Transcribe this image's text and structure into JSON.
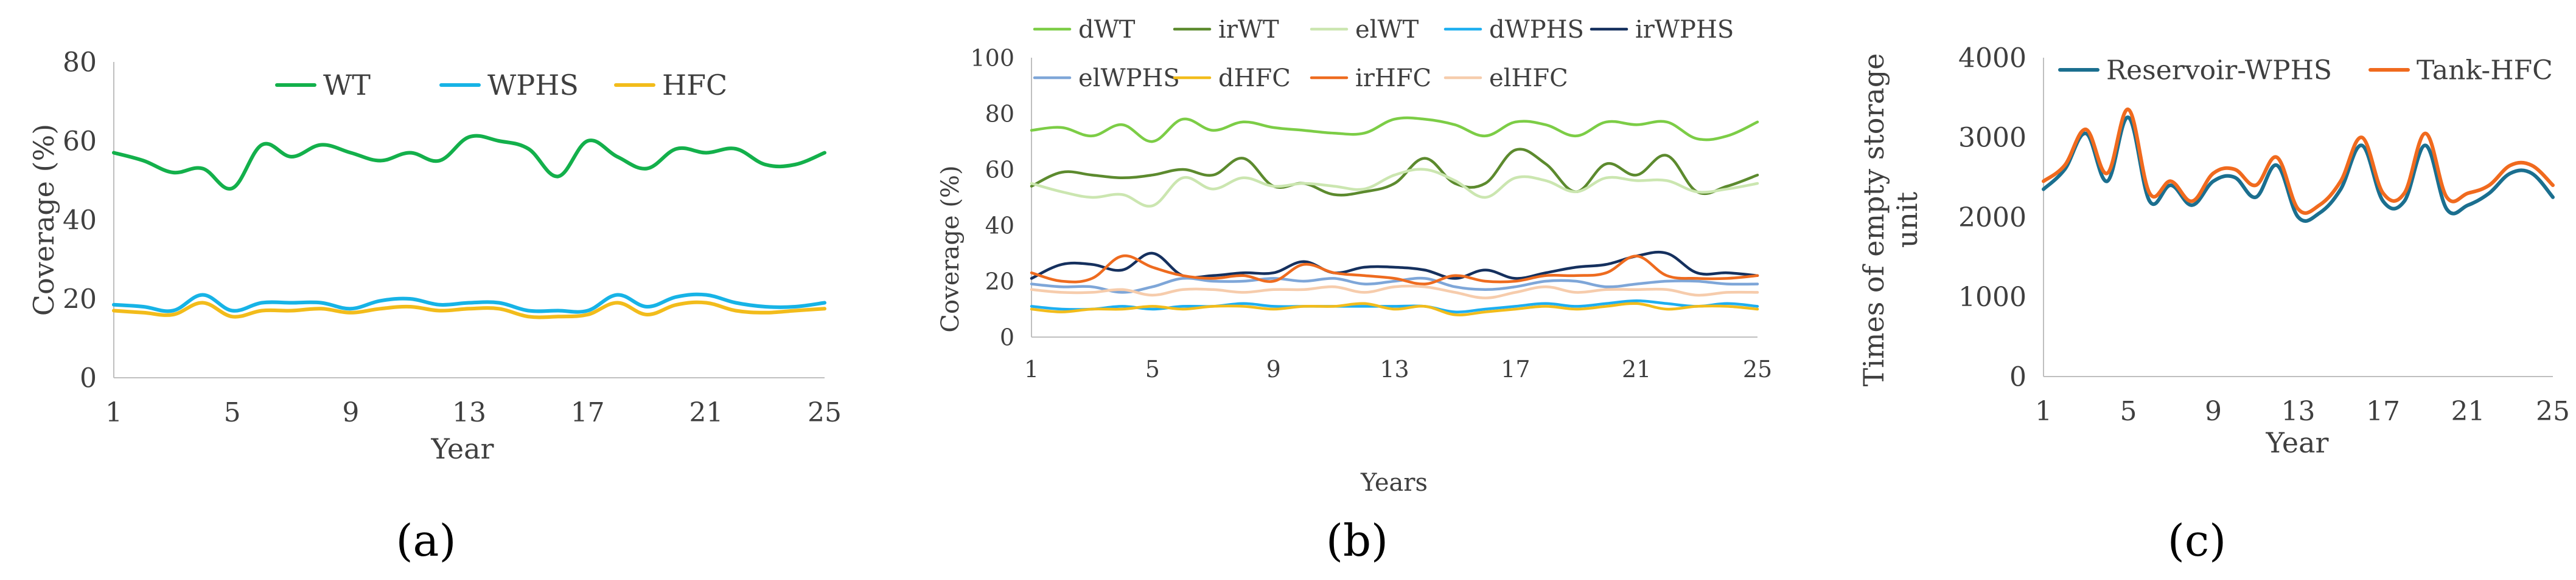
{
  "chart_data": [
    {
      "type": "line",
      "panel_label": "(a)",
      "xlabel": "Year",
      "ylabel": "Coverage (%)",
      "ylim": [
        0,
        80
      ],
      "yticks": [
        0,
        20,
        40,
        60,
        80
      ],
      "xticks": [
        1,
        5,
        9,
        13,
        17,
        21,
        25
      ],
      "x": [
        1,
        2,
        3,
        4,
        5,
        6,
        7,
        8,
        9,
        10,
        11,
        12,
        13,
        14,
        15,
        16,
        17,
        18,
        19,
        20,
        21,
        22,
        23,
        24,
        25
      ],
      "legend_position": "top",
      "series": [
        {
          "name": "WT",
          "color": "#13b04b",
          "values": [
            57,
            55,
            52,
            53,
            48,
            59,
            56,
            59,
            57,
            55,
            57,
            55,
            61,
            60,
            58,
            51,
            60,
            56,
            53,
            58,
            57,
            58,
            54,
            54,
            57
          ]
        },
        {
          "name": "WPHS",
          "color": "#17b3e6",
          "values": [
            18.5,
            18,
            17,
            21,
            17,
            19,
            19,
            19,
            17.5,
            19.5,
            20,
            18.5,
            19,
            19,
            17,
            17,
            17,
            21,
            18,
            20.5,
            21,
            19,
            18,
            18,
            19
          ]
        },
        {
          "name": "HFC",
          "color": "#f2bc1b",
          "values": [
            17,
            16.5,
            16,
            19,
            15.5,
            17,
            17,
            17.5,
            16.5,
            17.5,
            18,
            17,
            17.5,
            17.5,
            15.5,
            15.5,
            16,
            19,
            16,
            18.5,
            19,
            17,
            16.5,
            17,
            17.5
          ]
        }
      ]
    },
    {
      "type": "line",
      "panel_label": "(b)",
      "xlabel": "Years",
      "ylabel": "Coverage (%)",
      "ylim": [
        0,
        100
      ],
      "yticks": [
        0,
        20,
        40,
        60,
        80,
        100
      ],
      "xticks": [
        1,
        5,
        9,
        13,
        17,
        21,
        25
      ],
      "x": [
        1,
        2,
        3,
        4,
        5,
        6,
        7,
        8,
        9,
        10,
        11,
        12,
        13,
        14,
        15,
        16,
        17,
        18,
        19,
        20,
        21,
        22,
        23,
        24,
        25
      ],
      "legend_position": "top",
      "series": [
        {
          "name": "dWT",
          "color": "#7ccd46",
          "values": [
            74,
            75,
            72,
            76,
            70,
            78,
            74,
            77,
            75,
            74,
            73,
            73,
            78,
            78,
            76,
            72,
            77,
            76,
            72,
            77,
            76,
            77,
            71,
            72,
            77
          ]
        },
        {
          "name": "irWT",
          "color": "#5c8a2e",
          "values": [
            54,
            59,
            58,
            57,
            58,
            60,
            58,
            64,
            54,
            55,
            51,
            52,
            55,
            64,
            55,
            55,
            67,
            62,
            52,
            62,
            58,
            65,
            52,
            54,
            58
          ]
        },
        {
          "name": "elWT",
          "color": "#cbe6b0",
          "values": [
            55,
            52,
            50,
            51,
            47,
            57,
            53,
            57,
            54,
            55,
            54,
            53,
            58,
            60,
            56,
            50,
            57,
            56,
            52,
            57,
            56,
            56,
            52,
            53,
            55
          ]
        },
        {
          "name": "dWPHS",
          "color": "#1eaff0",
          "values": [
            11,
            10,
            10,
            11,
            10,
            11,
            11,
            12,
            11,
            11,
            11,
            11,
            11,
            11,
            9,
            10,
            11,
            12,
            11,
            12,
            13,
            12,
            11,
            12,
            11
          ]
        },
        {
          "name": "irWPHS",
          "color": "#15305e",
          "values": [
            21,
            26,
            26,
            24,
            30,
            22,
            22,
            23,
            23,
            27,
            23,
            25,
            25,
            24,
            21,
            24,
            21,
            23,
            25,
            26,
            29,
            30,
            23,
            23,
            22
          ]
        },
        {
          "name": "elWPHS",
          "color": "#7ea6d8",
          "values": [
            19,
            18,
            18,
            16,
            18,
            21,
            20,
            20,
            21,
            20,
            21,
            19,
            20,
            21,
            18,
            17,
            18,
            20,
            20,
            18,
            19,
            20,
            20,
            19,
            19
          ]
        },
        {
          "name": "dHFC",
          "color": "#f2bc1b",
          "values": [
            10,
            9,
            10,
            10,
            11,
            10,
            11,
            11,
            10,
            11,
            11,
            12,
            10,
            11,
            8,
            9,
            10,
            11,
            10,
            11,
            12,
            10,
            11,
            11,
            10
          ]
        },
        {
          "name": "irHFC",
          "color": "#ee6b1f",
          "values": [
            23,
            20,
            21,
            29,
            25,
            22,
            21,
            22,
            20,
            26,
            23,
            22,
            21,
            19,
            22,
            20,
            20,
            22,
            22,
            23,
            29,
            22,
            21,
            21,
            22
          ]
        },
        {
          "name": "elHFC",
          "color": "#f6ccac",
          "values": [
            17,
            16,
            16,
            17,
            15,
            17,
            17,
            16,
            17,
            17,
            18,
            16,
            18,
            18,
            16,
            14,
            16,
            18,
            16,
            17,
            17,
            17,
            15,
            16,
            16
          ]
        }
      ]
    },
    {
      "type": "line",
      "panel_label": "(c)",
      "xlabel": "Year",
      "ylabel": "Times of empty storage unit",
      "ylim": [
        0,
        4000
      ],
      "yticks": [
        0,
        1000,
        2000,
        3000,
        4000
      ],
      "xticks": [
        1,
        5,
        9,
        13,
        17,
        21,
        25
      ],
      "x": [
        1,
        2,
        3,
        4,
        5,
        6,
        7,
        8,
        9,
        10,
        11,
        12,
        13,
        14,
        15,
        16,
        17,
        18,
        19,
        20,
        21,
        22,
        23,
        24,
        25
      ],
      "legend_position": "top",
      "series": [
        {
          "name": "Reservoir-WPHS",
          "color": "#1b6f8f",
          "values": [
            2350,
            2600,
            3050,
            2450,
            3250,
            2200,
            2400,
            2150,
            2450,
            2500,
            2250,
            2650,
            2000,
            2050,
            2350,
            2900,
            2200,
            2200,
            2900,
            2100,
            2150,
            2300,
            2550,
            2550,
            2250
          ]
        },
        {
          "name": "Tank-HFC",
          "color": "#f06a1e",
          "values": [
            2450,
            2650,
            3100,
            2550,
            3350,
            2300,
            2450,
            2200,
            2550,
            2600,
            2400,
            2750,
            2100,
            2150,
            2450,
            3000,
            2300,
            2300,
            3050,
            2250,
            2300,
            2400,
            2650,
            2650,
            2400
          ]
        }
      ]
    }
  ]
}
